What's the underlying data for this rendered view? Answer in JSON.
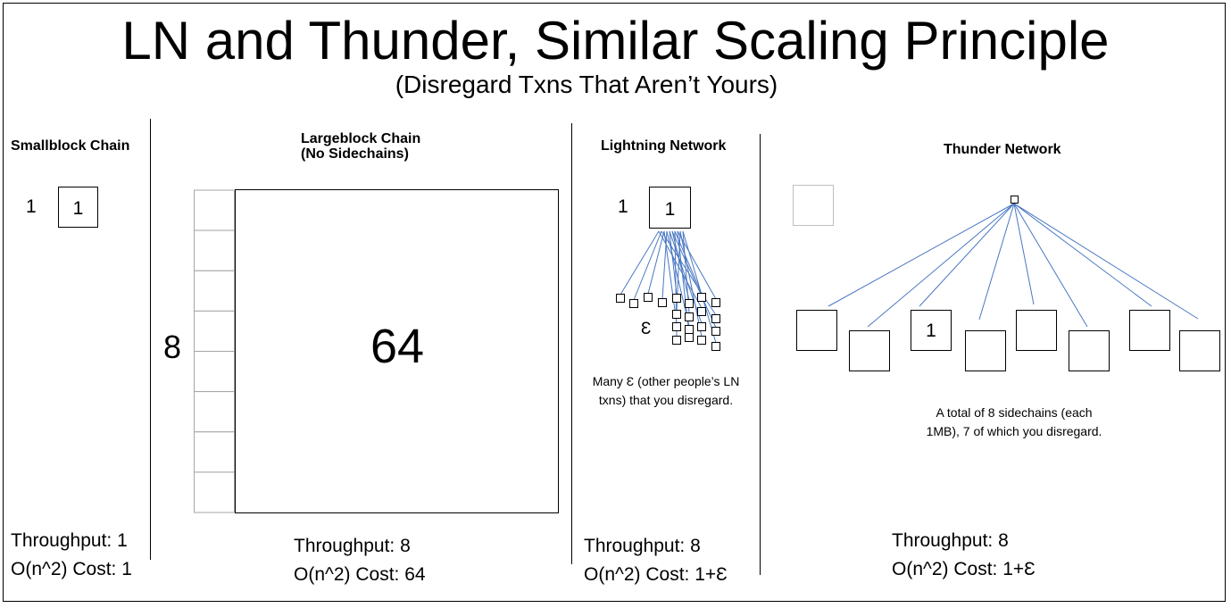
{
  "title": "LN and Thunder, Similar Scaling Principle",
  "subtitle": "(Disregard Txns That Aren’t Yours)",
  "smallblock": {
    "heading": "Smallblock Chain",
    "side_label": "1",
    "block_label": "1",
    "throughput": "Throughput: 1",
    "cost": "O(n^2) Cost: 1"
  },
  "largeblock": {
    "heading_line1": "Largeblock Chain",
    "heading_line2": "(No Sidechains)",
    "side_label": "8",
    "block_label": "64",
    "side_cells": 8,
    "throughput": "Throughput: 8",
    "cost": "O(n^2) Cost: 64"
  },
  "lightning": {
    "heading": "Lightning Network",
    "side_label": "1",
    "block_label": "1",
    "epsilon_label": "Ɛ",
    "note_line1": "Many Ɛ (other people’s LN",
    "note_line2": "txns) that you disregard.",
    "throughput": "Throughput: 8",
    "cost": "O(n^2) Cost: 1+Ɛ"
  },
  "thunder": {
    "heading": "Thunder Network",
    "sidechain_count": 8,
    "own_sidechain_label": "1",
    "note_line1": "A total of 8 sidechains (each",
    "note_line2": "1MB), 7 of which you disregard.",
    "throughput": "Throughput: 8",
    "cost": "O(n^2) Cost: 1+Ɛ"
  },
  "colors": {
    "link_line": "#4a78c2",
    "faded_box": "#bfbfbf"
  }
}
